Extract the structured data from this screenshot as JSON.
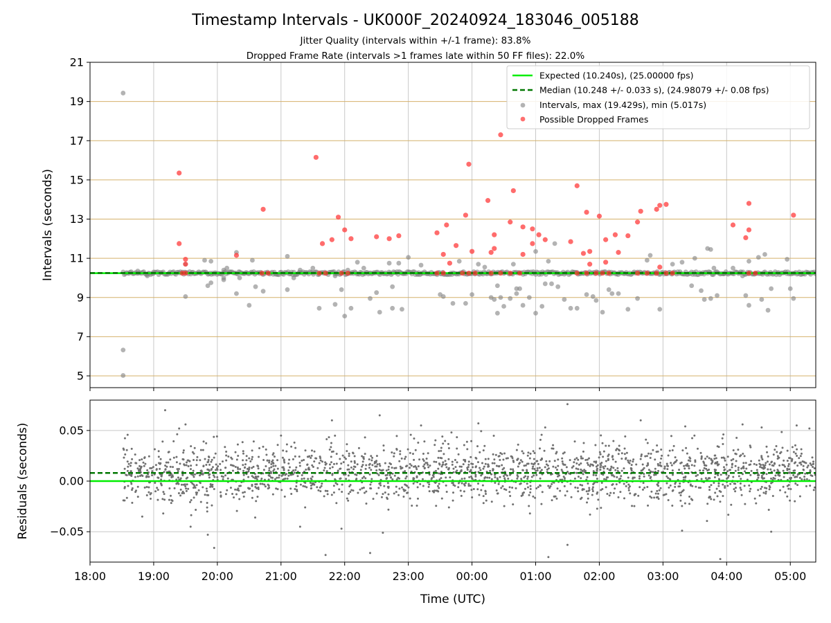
{
  "title": "Timestamp Intervals - UK000F_20240924_183046_005188",
  "subtitle_lines": [
    "Jitter Quality (intervals within +/-1 frame): 83.8%",
    "Dropped Frame Rate (intervals >1 frames late within 50 FF files): 22.0%"
  ],
  "colors": {
    "expected": "#00ee00",
    "median": "#007700",
    "intervals": "#808080",
    "dropped": "#ff3333",
    "hgrid_top": "#d4b06a",
    "grid": "#c8c8c8"
  },
  "chart_data": [
    {
      "type": "scatter",
      "panel": "intervals",
      "xlabel": "",
      "ylabel": "Intervals (seconds)",
      "x_unit": "hours since 18:00 UTC",
      "xlim": [
        18.0,
        29.4
      ],
      "ylim": [
        4.4,
        21.0
      ],
      "yticks": [
        5,
        7,
        9,
        11,
        13,
        15,
        17,
        19,
        21
      ],
      "yticklabels": [
        "5",
        "7",
        "9",
        "11",
        "13",
        "15",
        "17",
        "19",
        "21"
      ],
      "grid": true,
      "legend_position": "top-right",
      "legend": [
        "Expected (10.240s), (25.00000 fps)",
        "Median (10.248 +/- 0.033 s), (24.98079 +/- 0.08 fps)",
        "Intervals, max (19.429s), min (5.017s)",
        "Possible Dropped Frames"
      ],
      "reference_lines": {
        "expected": 10.24,
        "median": 10.248
      },
      "series": [
        {
          "name": "Intervals, max (19.429s), min (5.017s)",
          "baseline": {
            "x_range": [
              18.52,
              29.4
            ],
            "y": 10.24
          },
          "points": [
            [
              18.52,
              19.43
            ],
            [
              18.52,
              6.32
            ],
            [
              18.52,
              5.02
            ],
            [
              18.75,
              10.35
            ],
            [
              18.9,
              10.1
            ],
            [
              19.0,
              10.3
            ],
            [
              19.5,
              9.05
            ],
            [
              19.5,
              10.7
            ],
            [
              19.8,
              10.9
            ],
            [
              19.85,
              9.6
            ],
            [
              19.9,
              10.85
            ],
            [
              19.9,
              9.75
            ],
            [
              20.1,
              9.9
            ],
            [
              20.1,
              10.4
            ],
            [
              20.1,
              10.0
            ],
            [
              20.15,
              10.5
            ],
            [
              20.3,
              9.2
            ],
            [
              20.3,
              11.3
            ],
            [
              20.35,
              10.0
            ],
            [
              20.5,
              8.6
            ],
            [
              20.55,
              10.9
            ],
            [
              20.6,
              9.55
            ],
            [
              20.72,
              9.32
            ],
            [
              21.1,
              11.1
            ],
            [
              21.1,
              9.4
            ],
            [
              21.2,
              10.0
            ],
            [
              21.3,
              10.4
            ],
            [
              21.5,
              10.5
            ],
            [
              21.6,
              8.45
            ],
            [
              21.85,
              10.1
            ],
            [
              21.85,
              8.65
            ],
            [
              21.95,
              9.4
            ],
            [
              22.0,
              8.05
            ],
            [
              22.05,
              10.4
            ],
            [
              22.1,
              8.45
            ],
            [
              22.2,
              10.8
            ],
            [
              22.3,
              10.5
            ],
            [
              22.4,
              8.95
            ],
            [
              22.5,
              9.25
            ],
            [
              22.55,
              8.25
            ],
            [
              22.7,
              10.75
            ],
            [
              22.75,
              9.55
            ],
            [
              22.75,
              8.45
            ],
            [
              22.85,
              10.75
            ],
            [
              22.9,
              8.4
            ],
            [
              23.0,
              11.05
            ],
            [
              23.15,
              10.2
            ],
            [
              23.2,
              10.65
            ],
            [
              23.5,
              9.15
            ],
            [
              23.55,
              9.05
            ],
            [
              23.7,
              8.7
            ],
            [
              23.8,
              10.85
            ],
            [
              23.9,
              8.7
            ],
            [
              24.0,
              9.15
            ],
            [
              24.1,
              10.7
            ],
            [
              24.2,
              10.55
            ],
            [
              24.3,
              9.0
            ],
            [
              24.35,
              8.9
            ],
            [
              24.4,
              8.2
            ],
            [
              24.4,
              9.6
            ],
            [
              24.45,
              9.0
            ],
            [
              24.5,
              8.55
            ],
            [
              24.6,
              8.95
            ],
            [
              24.65,
              10.7
            ],
            [
              24.7,
              9.45
            ],
            [
              24.7,
              9.2
            ],
            [
              24.75,
              9.45
            ],
            [
              24.8,
              8.6
            ],
            [
              24.9,
              9.0
            ],
            [
              25.0,
              11.35
            ],
            [
              25.0,
              8.2
            ],
            [
              25.1,
              8.55
            ],
            [
              25.15,
              9.7
            ],
            [
              25.2,
              10.85
            ],
            [
              25.25,
              9.7
            ],
            [
              25.3,
              11.75
            ],
            [
              25.35,
              9.55
            ],
            [
              25.45,
              8.9
            ],
            [
              25.55,
              8.45
            ],
            [
              25.65,
              8.45
            ],
            [
              25.8,
              9.15
            ],
            [
              25.9,
              9.05
            ],
            [
              25.95,
              8.85
            ],
            [
              26.05,
              8.25
            ],
            [
              26.15,
              9.4
            ],
            [
              26.2,
              9.2
            ],
            [
              26.3,
              9.2
            ],
            [
              26.45,
              8.4
            ],
            [
              26.6,
              8.95
            ],
            [
              26.75,
              10.9
            ],
            [
              26.8,
              11.15
            ],
            [
              26.95,
              8.4
            ],
            [
              27.15,
              10.7
            ],
            [
              27.3,
              10.8
            ],
            [
              27.45,
              9.6
            ],
            [
              27.5,
              11.0
            ],
            [
              27.6,
              9.35
            ],
            [
              27.65,
              8.9
            ],
            [
              27.7,
              11.5
            ],
            [
              27.75,
              8.95
            ],
            [
              27.75,
              11.45
            ],
            [
              27.8,
              10.5
            ],
            [
              27.85,
              9.1
            ],
            [
              27.95,
              10.2
            ],
            [
              28.1,
              10.5
            ],
            [
              28.25,
              10.1
            ],
            [
              28.3,
              9.1
            ],
            [
              28.35,
              8.6
            ],
            [
              28.35,
              10.85
            ],
            [
              28.5,
              11.05
            ],
            [
              28.55,
              8.9
            ],
            [
              28.6,
              11.2
            ],
            [
              28.65,
              8.35
            ],
            [
              28.7,
              9.45
            ],
            [
              28.95,
              10.95
            ],
            [
              29.0,
              9.45
            ],
            [
              29.05,
              8.95
            ],
            [
              29.2,
              10.2
            ]
          ]
        },
        {
          "name": "Possible Dropped Frames",
          "points": [
            [
              19.4,
              15.35
            ],
            [
              19.4,
              11.75
            ],
            [
              19.5,
              10.95
            ],
            [
              19.5,
              10.7
            ],
            [
              20.3,
              11.15
            ],
            [
              20.72,
              13.5
            ],
            [
              21.55,
              16.15
            ],
            [
              21.65,
              11.75
            ],
            [
              21.8,
              11.95
            ],
            [
              21.9,
              13.1
            ],
            [
              22.0,
              12.45
            ],
            [
              22.1,
              12.0
            ],
            [
              22.5,
              12.1
            ],
            [
              22.7,
              12.0
            ],
            [
              22.85,
              12.15
            ],
            [
              23.45,
              12.3
            ],
            [
              23.55,
              11.2
            ],
            [
              23.6,
              12.7
            ],
            [
              23.65,
              10.75
            ],
            [
              23.75,
              11.65
            ],
            [
              23.9,
              13.2
            ],
            [
              23.95,
              15.8
            ],
            [
              24.0,
              11.35
            ],
            [
              24.25,
              13.95
            ],
            [
              24.3,
              11.3
            ],
            [
              24.35,
              12.2
            ],
            [
              24.35,
              11.5
            ],
            [
              24.45,
              17.3
            ],
            [
              24.6,
              12.85
            ],
            [
              24.65,
              14.45
            ],
            [
              24.8,
              11.2
            ],
            [
              24.8,
              12.6
            ],
            [
              24.95,
              11.75
            ],
            [
              24.95,
              12.5
            ],
            [
              25.05,
              12.2
            ],
            [
              25.15,
              11.95
            ],
            [
              25.55,
              11.85
            ],
            [
              25.65,
              14.7
            ],
            [
              25.75,
              11.25
            ],
            [
              25.8,
              13.35
            ],
            [
              25.85,
              10.7
            ],
            [
              25.85,
              11.35
            ],
            [
              26.0,
              13.15
            ],
            [
              26.1,
              11.95
            ],
            [
              26.1,
              10.8
            ],
            [
              26.25,
              12.2
            ],
            [
              26.3,
              11.3
            ],
            [
              26.45,
              12.15
            ],
            [
              26.6,
              12.85
            ],
            [
              26.65,
              13.4
            ],
            [
              26.9,
              13.5
            ],
            [
              26.95,
              13.7
            ],
            [
              26.95,
              10.55
            ],
            [
              27.05,
              13.75
            ],
            [
              28.1,
              12.7
            ],
            [
              28.3,
              12.05
            ],
            [
              28.35,
              12.45
            ],
            [
              28.35,
              13.8
            ],
            [
              29.05,
              13.2
            ],
            [
              19.45,
              10.24
            ],
            [
              19.5,
              10.24
            ],
            [
              20.7,
              10.24
            ],
            [
              20.8,
              10.24
            ],
            [
              21.6,
              10.24
            ],
            [
              21.7,
              10.24
            ],
            [
              21.95,
              10.24
            ],
            [
              22.05,
              10.24
            ],
            [
              23.45,
              10.24
            ],
            [
              23.55,
              10.24
            ],
            [
              23.85,
              10.24
            ],
            [
              23.95,
              10.24
            ],
            [
              24.05,
              10.24
            ],
            [
              24.3,
              10.24
            ],
            [
              24.45,
              10.24
            ],
            [
              24.6,
              10.24
            ],
            [
              24.75,
              10.24
            ],
            [
              25.65,
              10.24
            ],
            [
              25.8,
              10.24
            ],
            [
              25.95,
              10.24
            ],
            [
              26.05,
              10.24
            ],
            [
              26.15,
              10.24
            ],
            [
              26.6,
              10.24
            ],
            [
              26.75,
              10.24
            ],
            [
              26.9,
              10.24
            ],
            [
              27.05,
              10.24
            ],
            [
              27.15,
              10.24
            ],
            [
              28.35,
              10.24
            ],
            [
              28.45,
              10.24
            ]
          ]
        }
      ]
    },
    {
      "type": "scatter",
      "panel": "residuals",
      "xlabel": "Time (UTC)",
      "ylabel": "Residuals (seconds)",
      "x_unit": "hours since 18:00 UTC",
      "xlim": [
        18.0,
        29.4
      ],
      "ylim": [
        -0.08,
        0.08
      ],
      "yticks": [
        -0.05,
        0.0,
        0.05
      ],
      "yticklabels": [
        "−0.05",
        "0.00",
        "0.05"
      ],
      "xticks": [
        18,
        19,
        20,
        21,
        22,
        23,
        24,
        25,
        26,
        27,
        28,
        29
      ],
      "xticklabels": [
        "18:00",
        "19:00",
        "20:00",
        "21:00",
        "22:00",
        "23:00",
        "00:00",
        "01:00",
        "02:00",
        "03:00",
        "04:00",
        "05:00"
      ],
      "grid": true,
      "reference_lines": {
        "expected": 0.0,
        "median": 0.008
      },
      "residual_cloud": {
        "x_range": [
          18.52,
          29.4
        ],
        "center": 0.008,
        "spread": 0.02,
        "count": 2100
      },
      "series": [
        {
          "name": "",
          "points": [
            [
              19.18,
              0.07
            ],
            [
              19.4,
              0.052
            ],
            [
              19.5,
              0.056
            ],
            [
              18.82,
              -0.035
            ],
            [
              19.15,
              -0.032
            ],
            [
              19.58,
              -0.045
            ],
            [
              19.85,
              -0.053
            ],
            [
              19.95,
              -0.066
            ],
            [
              21.0,
              0.045
            ],
            [
              21.3,
              -0.045
            ],
            [
              21.7,
              -0.073
            ],
            [
              21.8,
              0.06
            ],
            [
              21.95,
              -0.047
            ],
            [
              22.4,
              -0.071
            ],
            [
              22.55,
              0.065
            ],
            [
              22.6,
              -0.051
            ],
            [
              23.2,
              0.055
            ],
            [
              24.1,
              0.057
            ],
            [
              25.15,
              0.053
            ],
            [
              25.2,
              -0.075
            ],
            [
              25.5,
              0.076
            ],
            [
              25.5,
              -0.063
            ],
            [
              26.65,
              0.06
            ],
            [
              27.3,
              -0.049
            ],
            [
              27.35,
              0.054
            ],
            [
              27.9,
              -0.077
            ],
            [
              28.25,
              0.056
            ],
            [
              28.55,
              0.053
            ],
            [
              28.7,
              -0.05
            ],
            [
              29.1,
              0.055
            ],
            [
              29.3,
              0.052
            ]
          ]
        }
      ]
    }
  ]
}
